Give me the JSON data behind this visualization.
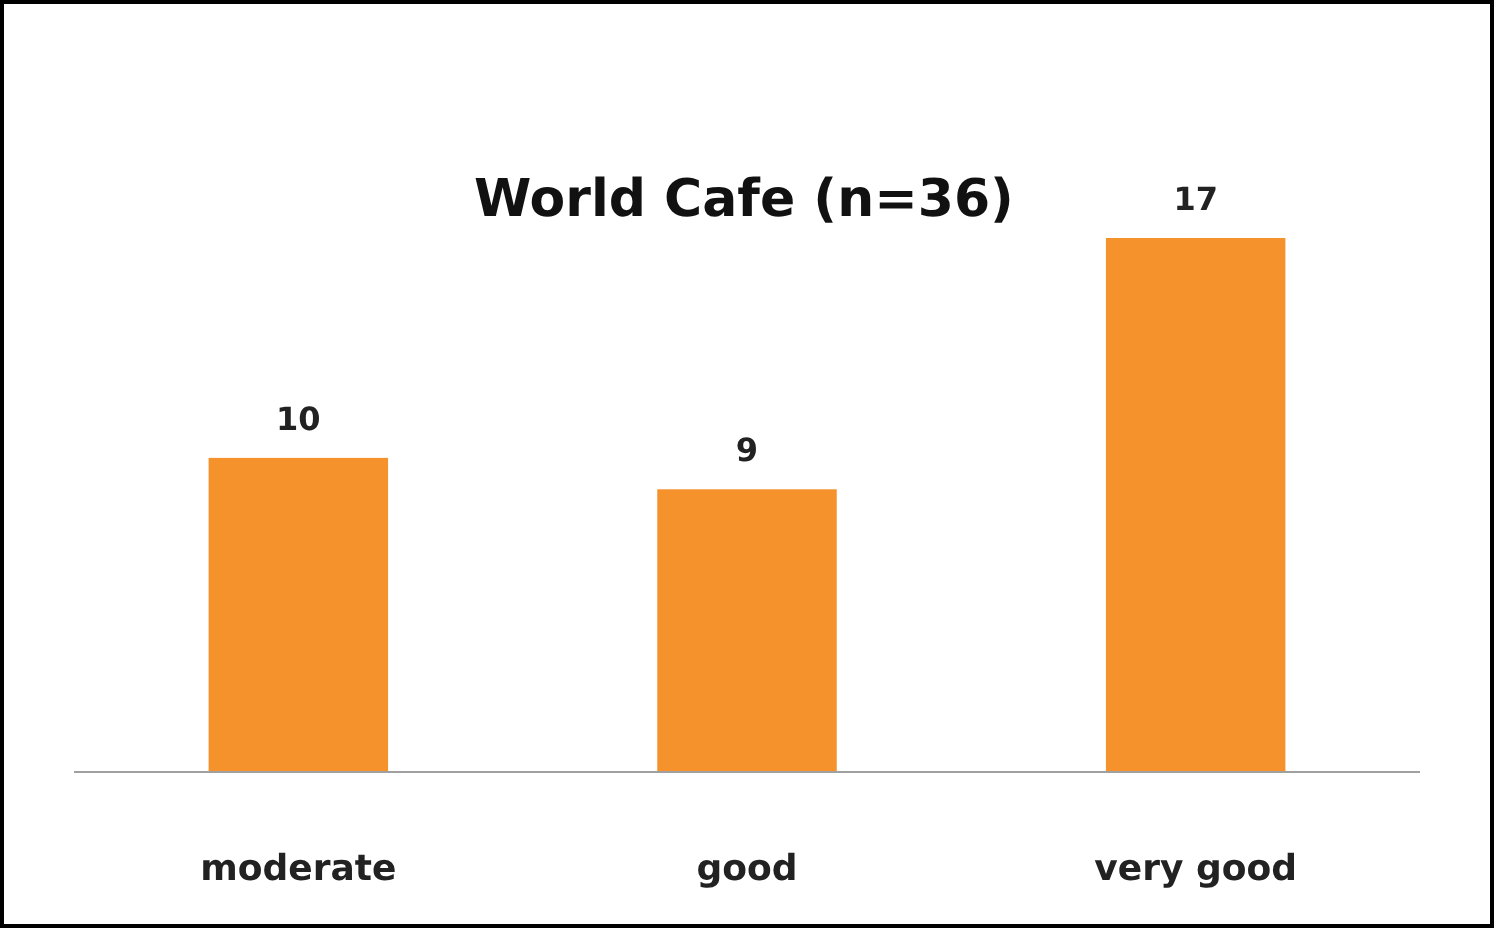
{
  "chart_data": {
    "type": "bar",
    "title": "World Cafe (n=36)",
    "categories": [
      "moderate",
      "good",
      "very good"
    ],
    "values": [
      10,
      9,
      17
    ],
    "color": "#f5922c",
    "data_labels": true
  }
}
